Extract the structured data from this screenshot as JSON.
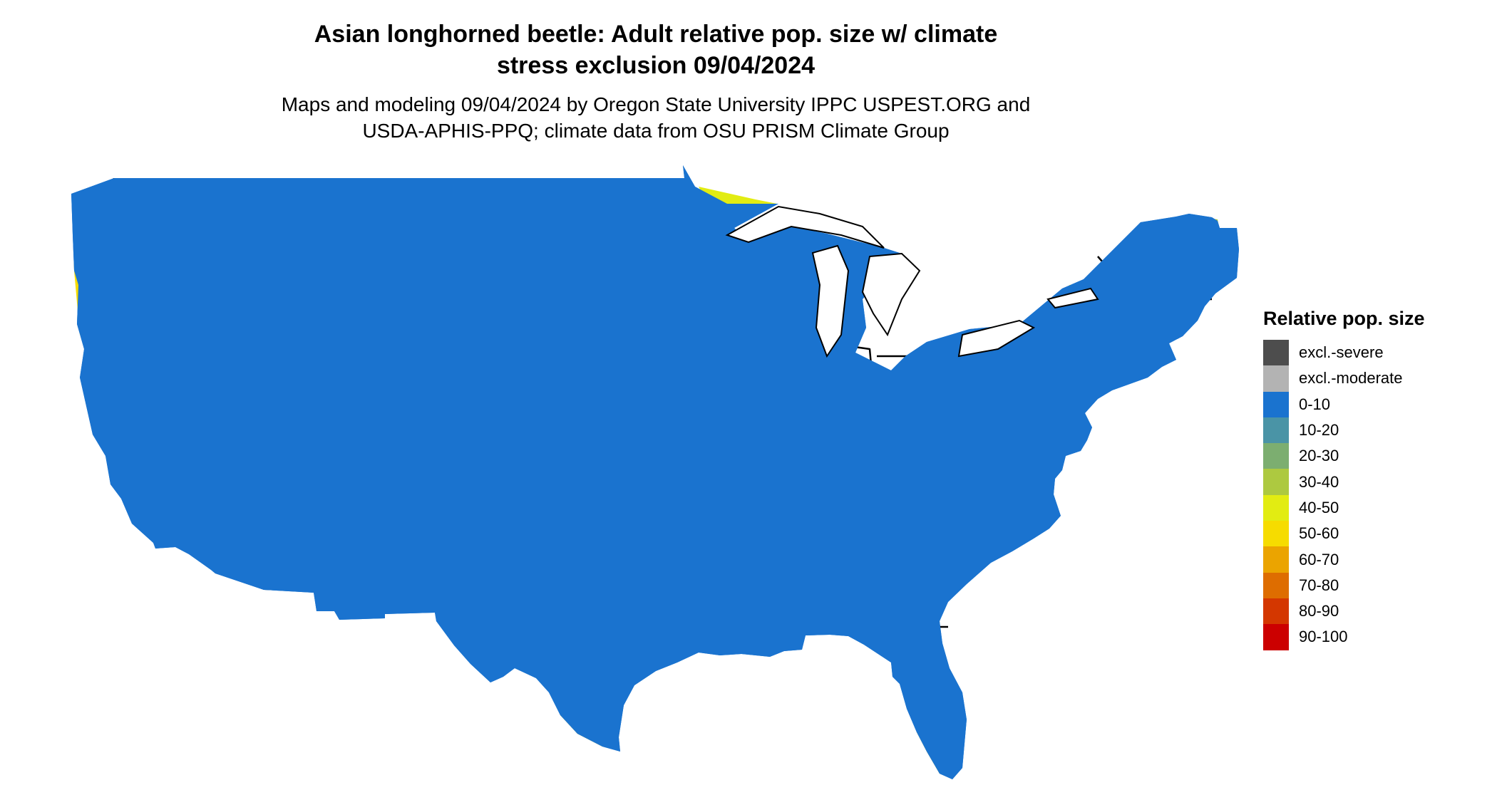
{
  "header": {
    "title_line1": "Asian longhorned beetle: Adult relative pop. size w/ climate",
    "title_line2": "stress exclusion 09/04/2024",
    "subtitle_line1": "Maps and modeling 09/04/2024 by Oregon State University IPPC USPEST.ORG and",
    "subtitle_line2": "USDA-APHIS-PPQ; climate data from OSU PRISM Climate Group"
  },
  "legend": {
    "title": "Relative pop. size",
    "items": [
      {
        "label": "excl.-severe",
        "color": "#4d4d4d"
      },
      {
        "label": "excl.-moderate",
        "color": "#b3b3b3"
      },
      {
        "label": "0-10",
        "color": "#1a73cf"
      },
      {
        "label": "10-20",
        "color": "#4a94a6"
      },
      {
        "label": "20-30",
        "color": "#7cae70"
      },
      {
        "label": "30-40",
        "color": "#adc940"
      },
      {
        "label": "40-50",
        "color": "#e2ec12"
      },
      {
        "label": "50-60",
        "color": "#f6dc00"
      },
      {
        "label": "60-70",
        "color": "#eba400"
      },
      {
        "label": "70-80",
        "color": "#de6d00"
      },
      {
        "label": "80-90",
        "color": "#d43700"
      },
      {
        "label": "90-100",
        "color": "#cc0000"
      }
    ]
  },
  "map": {
    "region": "contiguous-united-states",
    "base_color": "#1a73cf",
    "border_color": "#000000"
  }
}
